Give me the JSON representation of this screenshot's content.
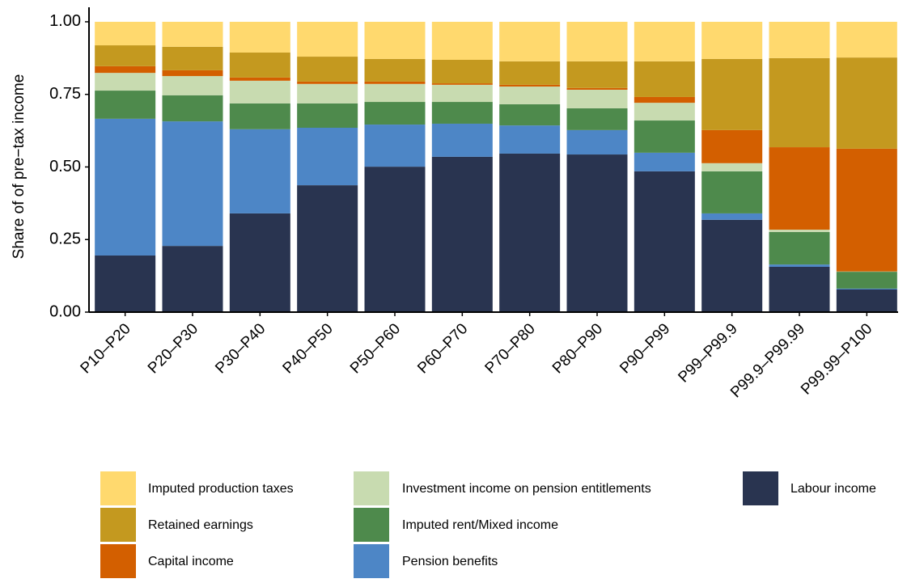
{
  "chart_data": {
    "type": "stacked_bar",
    "y_label": "Share of of pre−tax income",
    "categories": [
      "P10–P20",
      "P20–P30",
      "P30–P40",
      "P40–P50",
      "P50–P60",
      "P60–P70",
      "P70–P80",
      "P80–P90",
      "P90–P99",
      "P99–P99.9",
      "P99.9–P99.99",
      "P99.99–P100"
    ],
    "series": [
      {
        "name": "Imputed production taxes",
        "color": "#FFD96E",
        "values": [
          0.081,
          0.086,
          0.106,
          0.12,
          0.128,
          0.131,
          0.136,
          0.136,
          0.136,
          0.128,
          0.125,
          0.123
        ]
      },
      {
        "name": "Retained earnings",
        "color": "#C4991F",
        "values": [
          0.072,
          0.081,
          0.086,
          0.086,
          0.078,
          0.081,
          0.081,
          0.092,
          0.123,
          0.245,
          0.307,
          0.314
        ]
      },
      {
        "name": "Capital income",
        "color": "#D35F00",
        "values": [
          0.023,
          0.02,
          0.011,
          0.008,
          0.008,
          0.005,
          0.006,
          0.006,
          0.02,
          0.114,
          0.284,
          0.423
        ]
      },
      {
        "name": "Investment income on pension entitlements",
        "color": "#C8DBB0",
        "values": [
          0.061,
          0.066,
          0.078,
          0.067,
          0.062,
          0.059,
          0.061,
          0.064,
          0.061,
          0.028,
          0.008,
          0.001
        ]
      },
      {
        "name": "Imputed rent/Mixed income",
        "color": "#4E8A4C",
        "values": [
          0.097,
          0.09,
          0.089,
          0.084,
          0.078,
          0.075,
          0.073,
          0.075,
          0.111,
          0.145,
          0.112,
          0.058
        ]
      },
      {
        "name": "Pension benefits",
        "color": "#4D86C6",
        "values": [
          0.471,
          0.429,
          0.29,
          0.198,
          0.145,
          0.114,
          0.097,
          0.084,
          0.064,
          0.022,
          0.008,
          0.003
        ]
      },
      {
        "name": "Labour income",
        "color": "#293450",
        "values": [
          0.195,
          0.228,
          0.34,
          0.437,
          0.501,
          0.535,
          0.546,
          0.543,
          0.485,
          0.318,
          0.156,
          0.078
        ]
      }
    ],
    "ylim": [
      0,
      1.05
    ],
    "yticks": [
      {
        "value": 0,
        "label": "0.00"
      },
      0.25,
      {
        "value": 0.5,
        "label": "0.50"
      },
      0.75,
      {
        "value": 1,
        "label": "1.00"
      }
    ]
  }
}
